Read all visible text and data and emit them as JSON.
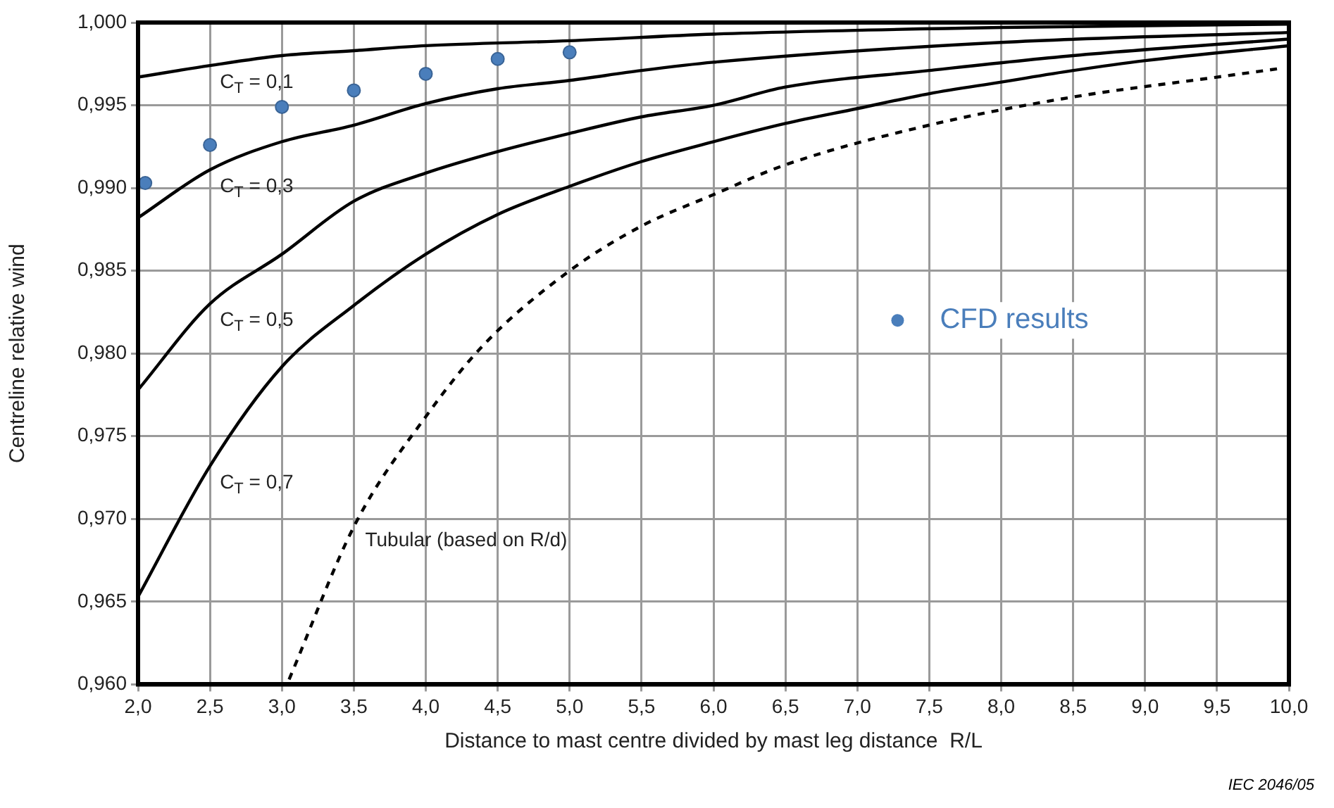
{
  "chart_data": {
    "type": "line",
    "xlabel": "Distance to mast centre divided by mast leg distance  R/L",
    "ylabel": "Centreline relative wind",
    "xlim": [
      2.0,
      10.0
    ],
    "ylim": [
      0.96,
      1.0
    ],
    "xticks": [
      {
        "value": 2.0,
        "label": "2,0"
      },
      {
        "value": 2.5,
        "label": "2,5"
      },
      {
        "value": 3.0,
        "label": "3,0"
      },
      {
        "value": 3.5,
        "label": "3,5"
      },
      {
        "value": 4.0,
        "label": "4,0"
      },
      {
        "value": 4.5,
        "label": "4,5"
      },
      {
        "value": 5.0,
        "label": "5,0"
      },
      {
        "value": 5.5,
        "label": "5,5"
      },
      {
        "value": 6.0,
        "label": "6,0"
      },
      {
        "value": 6.5,
        "label": "6,5"
      },
      {
        "value": 7.0,
        "label": "7,0"
      },
      {
        "value": 7.5,
        "label": "7,5"
      },
      {
        "value": 8.0,
        "label": "8,0"
      },
      {
        "value": 8.5,
        "label": "8,5"
      },
      {
        "value": 9.0,
        "label": "9,0"
      },
      {
        "value": 9.5,
        "label": "9,5"
      },
      {
        "value": 10.0,
        "label": "10,0"
      }
    ],
    "yticks": [
      {
        "value": 0.96,
        "label": "0,960"
      },
      {
        "value": 0.965,
        "label": "0,965"
      },
      {
        "value": 0.97,
        "label": "0,970"
      },
      {
        "value": 0.975,
        "label": "0,975"
      },
      {
        "value": 0.98,
        "label": "0,980"
      },
      {
        "value": 0.985,
        "label": "0,985"
      },
      {
        "value": 0.99,
        "label": "0,990"
      },
      {
        "value": 0.995,
        "label": "0,995"
      },
      {
        "value": 1.0,
        "label": "1,000"
      }
    ],
    "grid": true,
    "legend": "right",
    "series": [
      {
        "type": "line",
        "name": "C$_{T}$ = 0,1",
        "color": "#000000",
        "marker": "none",
        "line_style": "solid",
        "x": [
          2.0,
          2.5,
          3.0,
          3.5,
          4.0,
          5.0,
          6.0,
          8.0,
          10.0
        ],
        "values": [
          0.9967,
          0.9974,
          0.998,
          0.9983,
          0.9986,
          0.9989,
          0.9993,
          0.9997,
          0.9999
        ]
      },
      {
        "type": "line",
        "name": "C$_{T}$ = 0,3",
        "color": "#000000",
        "marker": "none",
        "line_style": "solid",
        "x": [
          2.0,
          2.5,
          3.0,
          3.5,
          4.0,
          4.5,
          5.0,
          5.5,
          6.0,
          8.0,
          10.0
        ],
        "values": [
          0.9882,
          0.9911,
          0.9928,
          0.9938,
          0.9951,
          0.996,
          0.9965,
          0.9971,
          0.9976,
          0.9988,
          0.9994
        ]
      },
      {
        "type": "line",
        "name": "C$_{T}$ = 0,5",
        "color": "#000000",
        "marker": "none",
        "line_style": "solid",
        "x": [
          2.0,
          2.5,
          3.0,
          3.5,
          4.0,
          4.5,
          5.0,
          5.5,
          6.0,
          6.5,
          7.5,
          8.5,
          10.0
        ],
        "values": [
          0.9778,
          0.983,
          0.986,
          0.9892,
          0.9909,
          0.9922,
          0.9933,
          0.9943,
          0.995,
          0.9961,
          0.9971,
          0.998,
          0.999
        ]
      },
      {
        "type": "line",
        "name": "C$_{T}$ = 0,7",
        "color": "#000000",
        "marker": "none",
        "line_style": "solid",
        "x": [
          2.0,
          2.5,
          3.0,
          3.5,
          4.0,
          4.5,
          5.0,
          5.5,
          6.0,
          6.5,
          7.0,
          7.5,
          8.0,
          8.5,
          9.0,
          10.0
        ],
        "values": [
          0.9653,
          0.9732,
          0.9792,
          0.9829,
          0.986,
          0.9884,
          0.9901,
          0.9916,
          0.9928,
          0.9939,
          0.9948,
          0.9957,
          0.9964,
          0.9971,
          0.9977,
          0.9986
        ]
      },
      {
        "type": "line",
        "name": "Tubular (based on R/d)",
        "color": "#000000",
        "marker": "none",
        "line_style": "dashed",
        "x": [
          3.05,
          3.51,
          4.01,
          4.4,
          5.0,
          5.5,
          6.0,
          6.5,
          7.5,
          8.5,
          9.5,
          9.92
        ],
        "values": [
          0.9603,
          0.9697,
          0.9763,
          0.9805,
          0.985,
          0.9877,
          0.9896,
          0.9914,
          0.9938,
          0.9955,
          0.9967,
          0.9972
        ]
      },
      {
        "type": "scatter",
        "name": "CFD results",
        "color": "#4a7ebb",
        "marker": "circle",
        "x": [
          2.05,
          2.5,
          3.0,
          3.5,
          4.0,
          4.5,
          5.0
        ],
        "values": [
          0.9903,
          0.9926,
          0.9949,
          0.9959,
          0.9969,
          0.9978,
          0.9982
        ]
      }
    ],
    "annotations": [
      "IEC  2046/05"
    ]
  }
}
